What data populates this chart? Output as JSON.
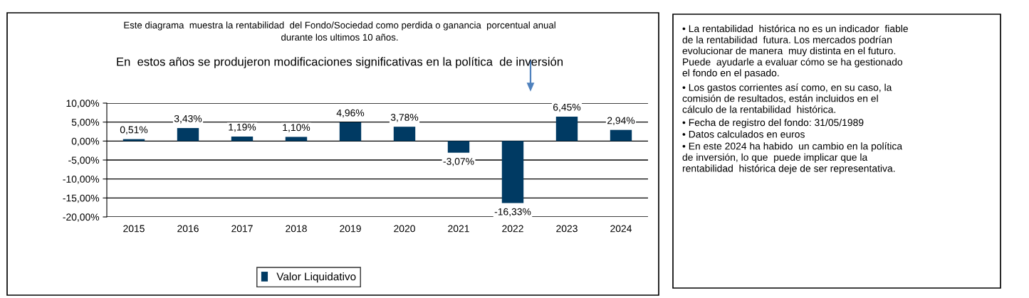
{
  "chart_data": {
    "type": "bar",
    "title": "Este diagrama  muestra la rentabilidad  del Fondo/Sociedad como perdida o ganancia  porcentual anual\ndurante los ultimos 10 años.",
    "subtitle": "En  estos años se produjeron modificaciones significativas en la política  de inversión",
    "categories": [
      "2015",
      "2016",
      "2017",
      "2018",
      "2019",
      "2020",
      "2021",
      "2022",
      "2023",
      "2024"
    ],
    "series": [
      {
        "name": "Valor Liquidativo",
        "color": "#003a63",
        "values": [
          0.51,
          3.43,
          1.19,
          1.1,
          4.96,
          3.78,
          -3.07,
          -16.33,
          6.45,
          2.94
        ],
        "value_labels": [
          "0,51%",
          "3,43%",
          "1,19%",
          "1,10%",
          "4,96%",
          "3,78%",
          "-3,07%",
          "-16,33%",
          "6,45%",
          "2,94%"
        ]
      }
    ],
    "ylim": [
      -20,
      10
    ],
    "yticks": [
      {
        "value": -20,
        "label": "-20,00%"
      },
      {
        "value": -15,
        "label": "-15,00%"
      },
      {
        "value": -10,
        "label": "-10,00%"
      },
      {
        "value": -5,
        "label": "-5,00%"
      },
      {
        "value": 0,
        "label": "0,00%"
      },
      {
        "value": 5,
        "label": "5,00%"
      },
      {
        "value": 10,
        "label": "10,00%"
      }
    ],
    "grid": "y",
    "legend": "bottom",
    "annotations": [
      "• La rentabilidad  histórica no es un indicador  fiable\nde la rentabilidad  futura. Los mercados podrían\nevolucionar de manera  muy distinta en el futuro.\nPuede  ayudarle a evaluar cómo se ha gestionado\nel fondo en el pasado.",
      "• Los gastos corrientes así como, en su caso, la\ncomisión de resultados, están incluidos en el\ncálculo de la rentabilidad  histórica.",
      "• Fecha de registro del fondo: 31/05/1989",
      "• Datos calculados en euros",
      "• En este 2024 ha habido  un cambio en la política\nde inversión, lo que  puede implicar que la\nrentabilidad  histórica deje de ser representativa."
    ]
  }
}
